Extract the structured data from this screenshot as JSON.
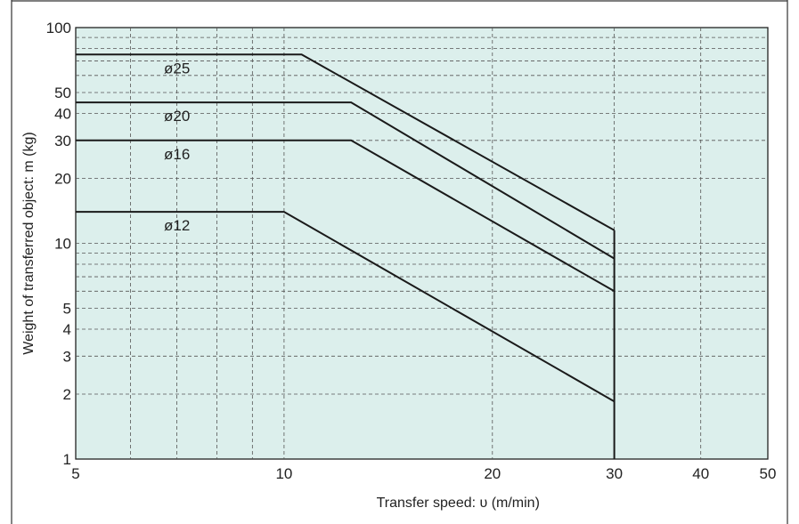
{
  "chart_data": {
    "type": "line",
    "title": "",
    "xlabel": "Transfer speed: υ (m/min)",
    "ylabel": "Weight of transferred object: m (kg)",
    "x_scale": "log",
    "y_scale": "log",
    "xlim": [
      5,
      50
    ],
    "ylim": [
      1,
      100
    ],
    "x_ticks": [
      5,
      10,
      20,
      30,
      40,
      50
    ],
    "x_tick_labels": [
      "5",
      "10",
      "20",
      "30",
      "40",
      "50"
    ],
    "y_ticks": [
      1,
      2,
      3,
      4,
      5,
      10,
      20,
      30,
      40,
      50,
      100
    ],
    "y_tick_labels": [
      "1",
      "2",
      "3",
      "4",
      "5",
      "10",
      "20",
      "30",
      "40",
      "50",
      "100"
    ],
    "grid": true,
    "grid_style": "dashed",
    "plot_background": "#dcefec",
    "line_color": "#1a1a1a",
    "series": [
      {
        "name": "ø25",
        "x": [
          5,
          10.6,
          30
        ],
        "y": [
          75,
          75,
          11.5
        ]
      },
      {
        "name": "ø20",
        "x": [
          5,
          12.5,
          30
        ],
        "y": [
          45,
          45,
          8.5
        ]
      },
      {
        "name": "ø16",
        "x": [
          5,
          12.5,
          30
        ],
        "y": [
          30,
          30,
          6
        ]
      },
      {
        "name": "ø12",
        "x": [
          5,
          10,
          30
        ],
        "y": [
          14,
          14,
          1.85
        ]
      }
    ],
    "limit_line": {
      "x": 30,
      "y_from": 1,
      "y_to": 11.5
    }
  }
}
